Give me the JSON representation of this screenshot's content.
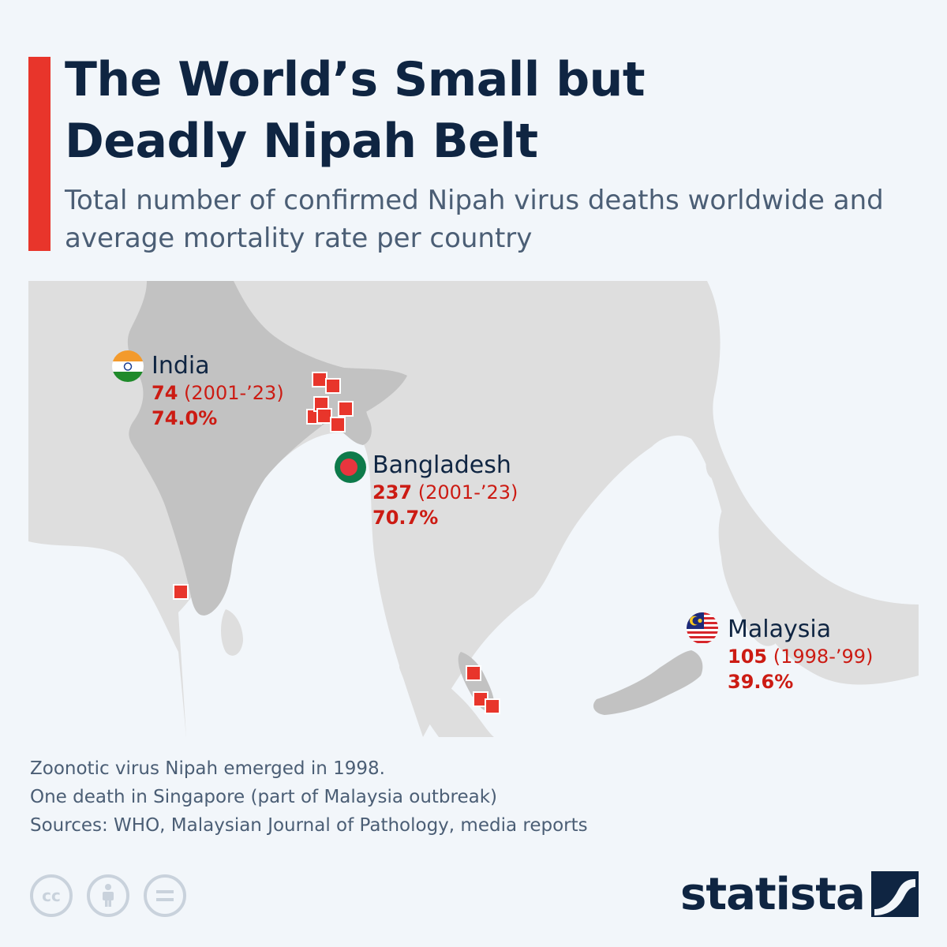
{
  "header": {
    "title": "The World’s Small but\nDeadly Nipah Belt",
    "subtitle": "Total number of confirmed Nipah virus deaths worldwide and average mortality rate per country"
  },
  "colors": {
    "accent": "#e8352b",
    "title_text": "#0f2542",
    "stat_text": "#cc1b13",
    "highlight_country": "#c2c2c2",
    "other_land": "#dedede",
    "marker": "#e8352b"
  },
  "countries": [
    {
      "name": "India",
      "deaths": "74",
      "period": "(2001-’23)",
      "mortality": "74.0%",
      "flag_icon": "india-flag-icon"
    },
    {
      "name": "Bangladesh",
      "deaths": "237",
      "period": "(2001-’23)",
      "mortality": "70.7%",
      "flag_icon": "bangladesh-flag-icon"
    },
    {
      "name": "Malaysia",
      "deaths": "105",
      "period": "(1998-’99)",
      "mortality": "39.6%",
      "flag_icon": "malaysia-flag-icon"
    }
  ],
  "notes": {
    "line1": "Zoonotic virus Nipah emerged in 1998.",
    "line2": "One death in Singapore (part of Malaysia outbreak)",
    "sources": "Sources: WHO, Malaysian Journal of Pathology, media reports"
  },
  "footer": {
    "license_icons": [
      "cc-icon",
      "attribution-icon",
      "no-derivatives-icon"
    ],
    "brand": "statista"
  }
}
